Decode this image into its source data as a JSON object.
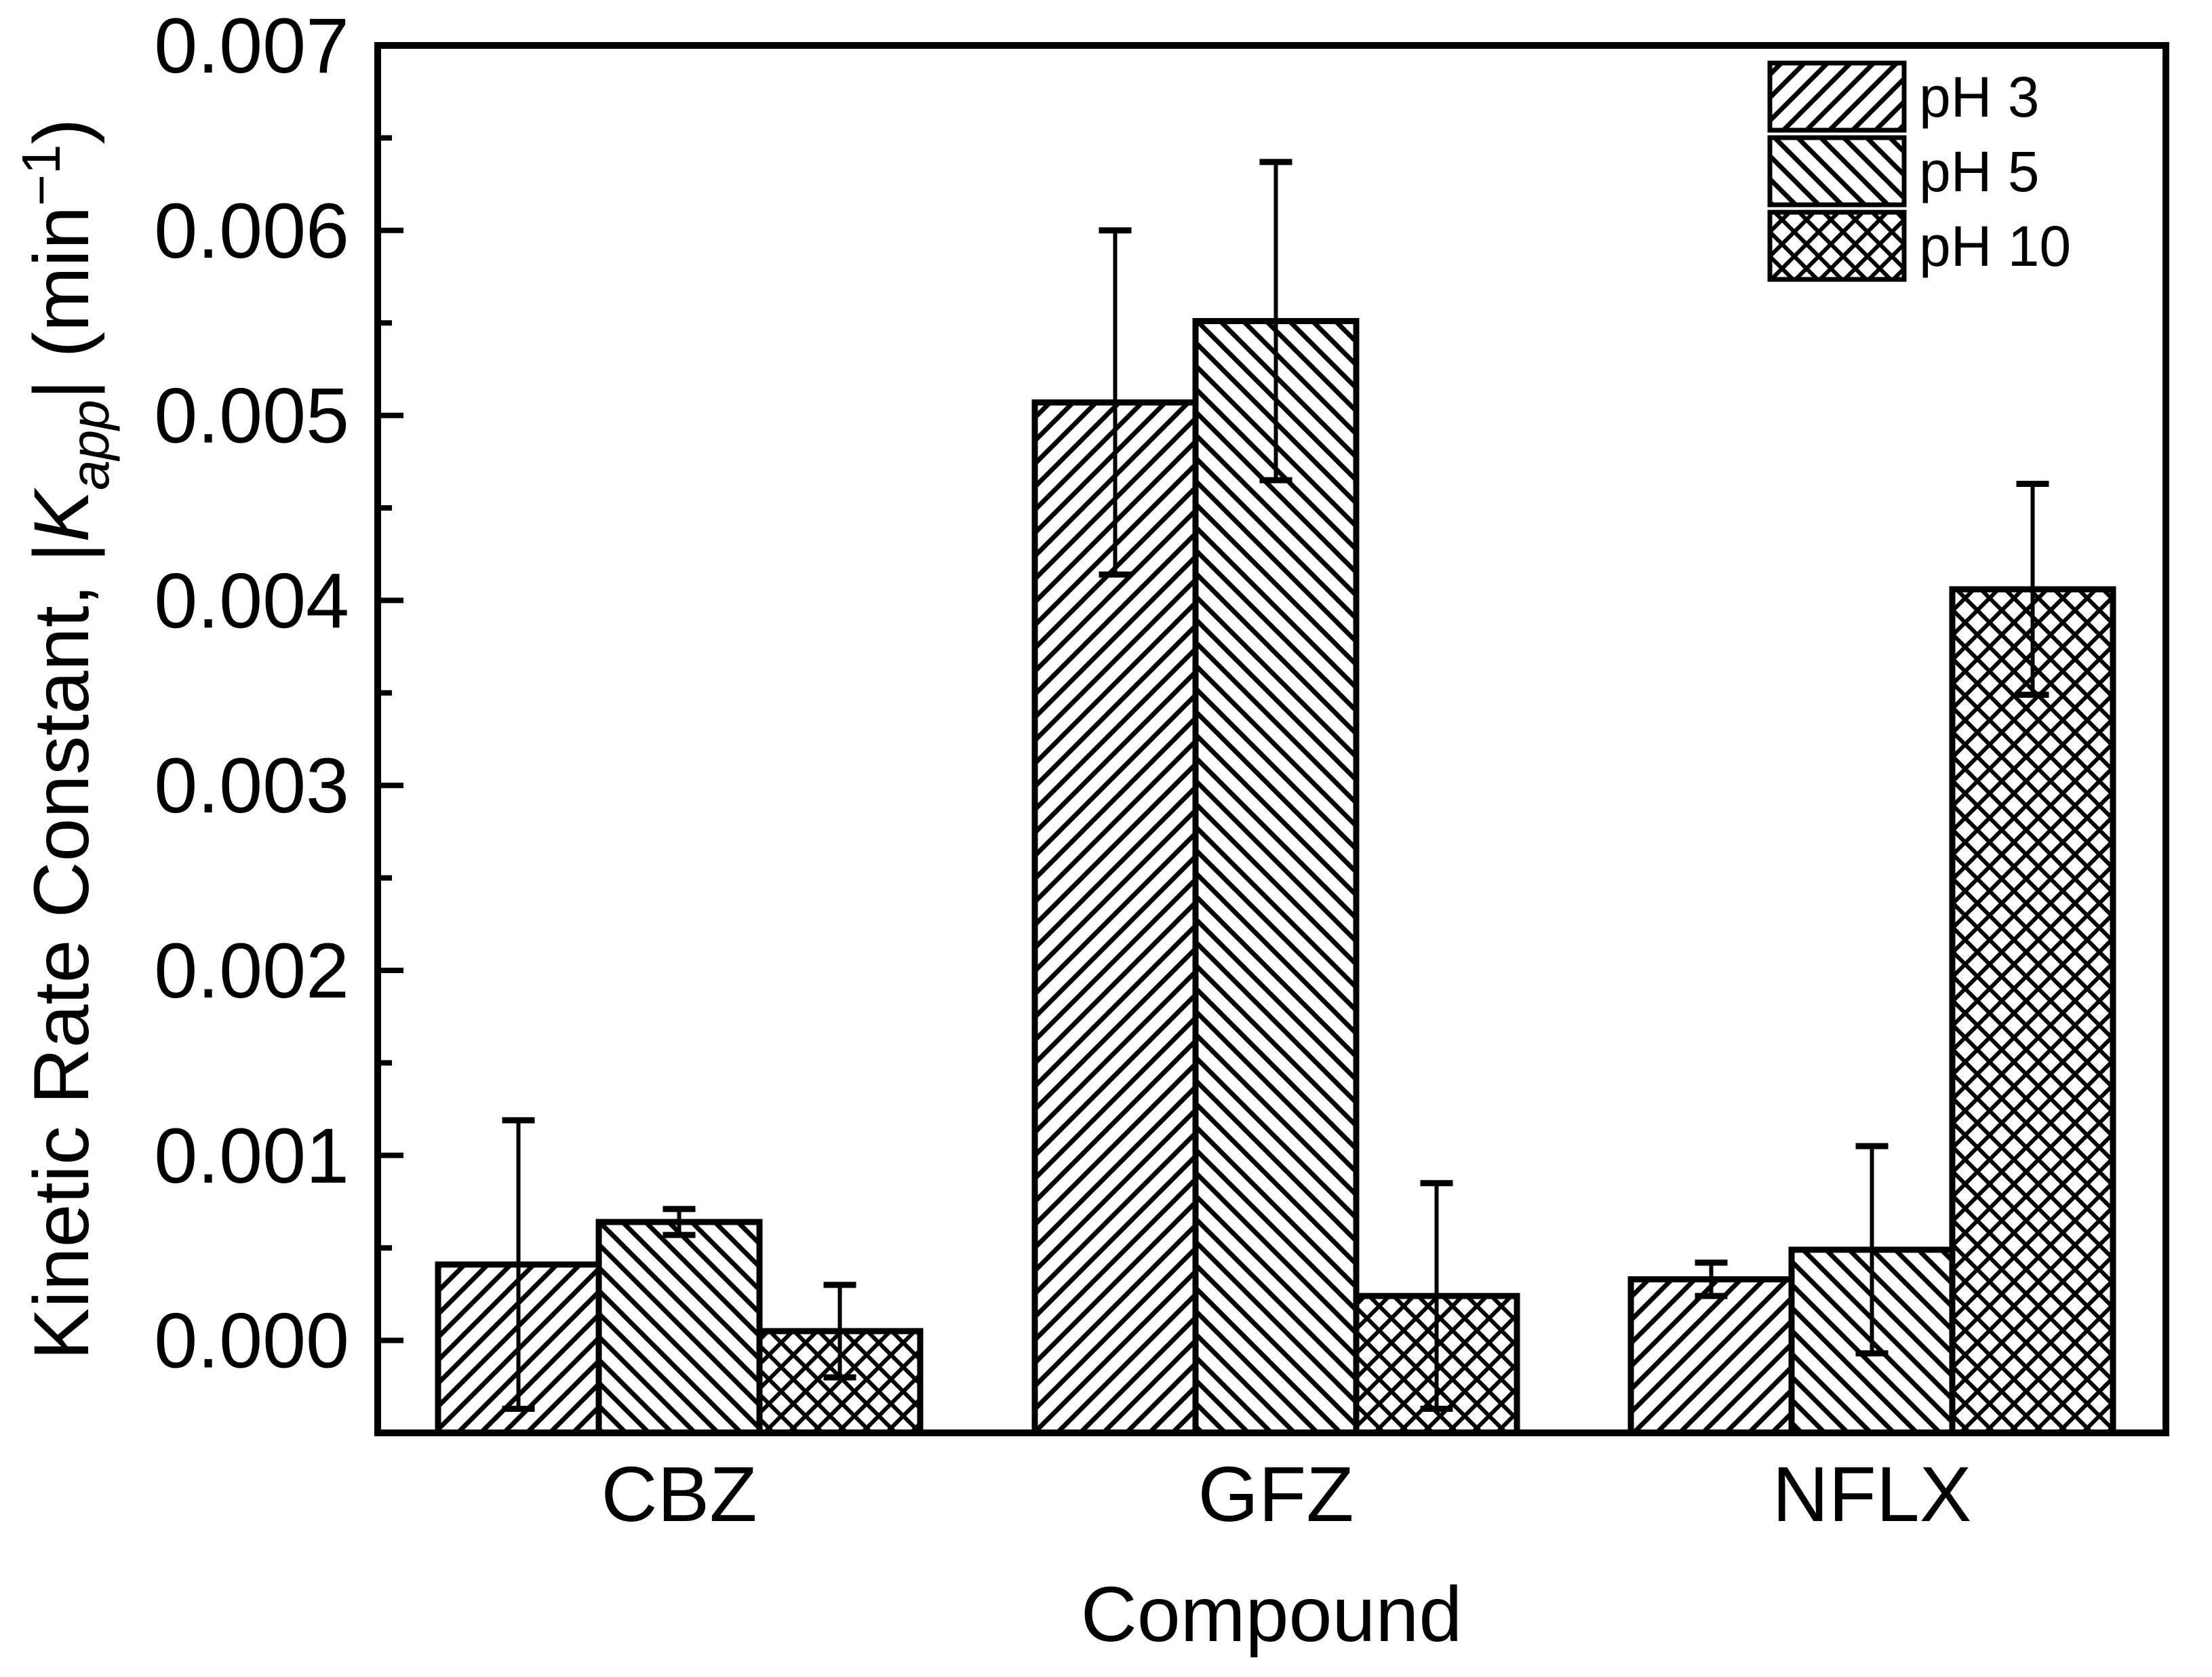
{
  "figure": {
    "background": "#ffffff",
    "ink": "#000000"
  },
  "y_axis": {
    "title": {
      "pre": "Kinetic Rate Constant, |",
      "k": "K",
      "sub": "app",
      "mid": "| (min",
      "sup": "−1",
      "post": ")"
    },
    "tick_labels": [
      "0.000",
      "0.001",
      "0.002",
      "0.003",
      "0.004",
      "0.005",
      "0.006",
      "0.007"
    ]
  },
  "x_axis": {
    "title": "Compound"
  },
  "legend": {
    "items": [
      {
        "label": "pH 3",
        "pattern": "diagonal-up-hatch"
      },
      {
        "label": "pH 5",
        "pattern": "diagonal-down-hatch"
      },
      {
        "label": "pH 10",
        "pattern": "crosshatch"
      }
    ]
  },
  "chart_data": {
    "type": "bar",
    "title": "",
    "xlabel": "Compound",
    "ylabel": "Kinetic Rate Constant, |K_app| (min^-1)",
    "categories": [
      "CBZ",
      "GFZ",
      "NFLX"
    ],
    "series": [
      {
        "name": "pH 3",
        "hatch": "diagonal-up",
        "values": [
          0.00041,
          0.00507,
          0.00033
        ],
        "errors": [
          0.00078,
          0.00093,
          9e-05
        ]
      },
      {
        "name": "pH 5",
        "hatch": "diagonal-down",
        "values": [
          0.00064,
          0.00551,
          0.00049
        ],
        "errors": [
          7e-05,
          0.00086,
          0.00056
        ]
      },
      {
        "name": "pH 10",
        "hatch": "crosshatch",
        "values": [
          5e-05,
          0.00024,
          0.00406
        ],
        "errors": [
          0.00025,
          0.00061,
          0.00057
        ]
      }
    ],
    "ylim": [
      -0.0005,
      0.007
    ],
    "ytick_step": 0.001,
    "yminor_step": 0.0005,
    "grid": false,
    "legend_position": "top-right-inside",
    "error_bars": true,
    "bar_fill": "#ffffff",
    "bar_edge": "#000000"
  }
}
